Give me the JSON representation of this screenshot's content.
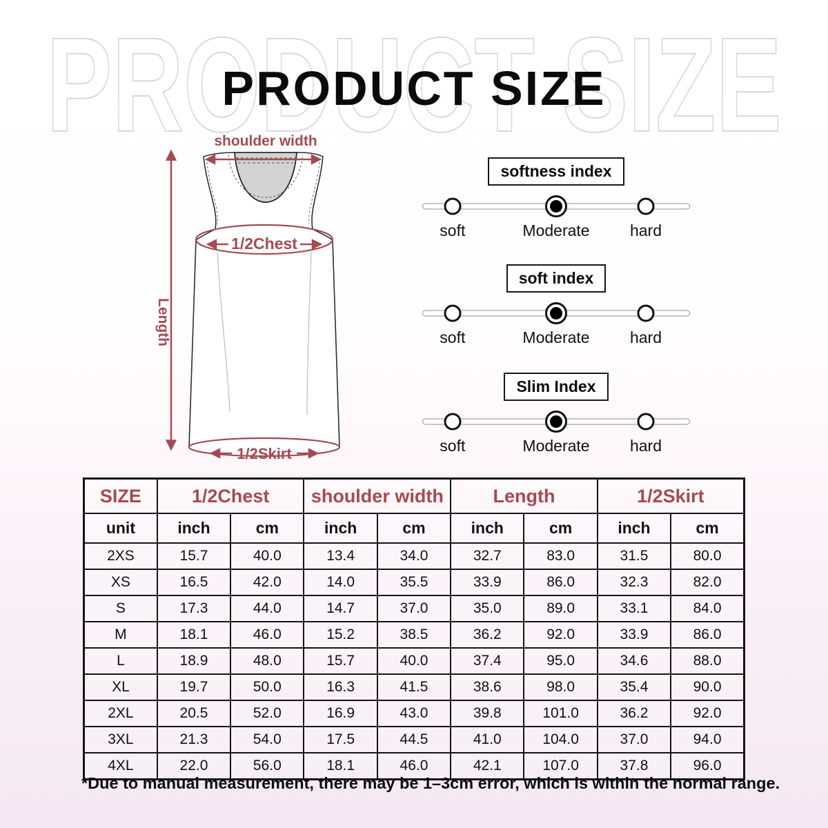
{
  "page": {
    "title": "PRODUCT SIZE",
    "watermark": "PRODUCT SIZE",
    "footnote": "*Due to manual measurement, there may be 1–3cm error, which is within the normal range."
  },
  "colors": {
    "accent_red": "#A54A53",
    "watermark_outline": "#D8D8D8",
    "background_top": "#FFFFFF",
    "background_bottom": "#F3E8F1",
    "table_border": "#141414",
    "neck_fill": "#D3D3D3"
  },
  "diagram": {
    "labels": {
      "shoulder_width": "shoulder width",
      "half_chest": "1/2Chest",
      "length": "Length",
      "half_skirt": "1/2Skirt"
    }
  },
  "sliders": [
    {
      "title": "softness index",
      "options": [
        "soft",
        "Moderate",
        "hard"
      ],
      "selected": "Moderate"
    },
    {
      "title": "soft index",
      "options": [
        "soft",
        "Moderate",
        "hard"
      ],
      "selected": "Moderate"
    },
    {
      "title": "Slim Index",
      "options": [
        "soft",
        "Moderate",
        "hard"
      ],
      "selected": "Moderate"
    }
  ],
  "size_table": {
    "size_label": "SIZE",
    "groups": [
      "1/2Chest",
      "shoulder width",
      "Length",
      "1/2Skirt"
    ],
    "unit_row": [
      "unit",
      "inch",
      "cm",
      "inch",
      "cm",
      "inch",
      "cm",
      "inch",
      "cm"
    ],
    "rows": [
      {
        "size": "2XS",
        "values": [
          "15.7",
          "40.0",
          "13.4",
          "34.0",
          "32.7",
          "83.0",
          "31.5",
          "80.0"
        ]
      },
      {
        "size": "XS",
        "values": [
          "16.5",
          "42.0",
          "14.0",
          "35.5",
          "33.9",
          "86.0",
          "32.3",
          "82.0"
        ]
      },
      {
        "size": "S",
        "values": [
          "17.3",
          "44.0",
          "14.7",
          "37.0",
          "35.0",
          "89.0",
          "33.1",
          "84.0"
        ]
      },
      {
        "size": "M",
        "values": [
          "18.1",
          "46.0",
          "15.2",
          "38.5",
          "36.2",
          "92.0",
          "33.9",
          "86.0"
        ]
      },
      {
        "size": "L",
        "values": [
          "18.9",
          "48.0",
          "15.7",
          "40.0",
          "37.4",
          "95.0",
          "34.6",
          "88.0"
        ]
      },
      {
        "size": "XL",
        "values": [
          "19.7",
          "50.0",
          "16.3",
          "41.5",
          "38.6",
          "98.0",
          "35.4",
          "90.0"
        ]
      },
      {
        "size": "2XL",
        "values": [
          "20.5",
          "52.0",
          "16.9",
          "43.0",
          "39.8",
          "101.0",
          "36.2",
          "92.0"
        ]
      },
      {
        "size": "3XL",
        "values": [
          "21.3",
          "54.0",
          "17.5",
          "44.5",
          "41.0",
          "104.0",
          "37.0",
          "94.0"
        ]
      },
      {
        "size": "4XL",
        "values": [
          "22.0",
          "56.0",
          "18.1",
          "46.0",
          "42.1",
          "107.0",
          "37.8",
          "96.0"
        ]
      }
    ]
  }
}
